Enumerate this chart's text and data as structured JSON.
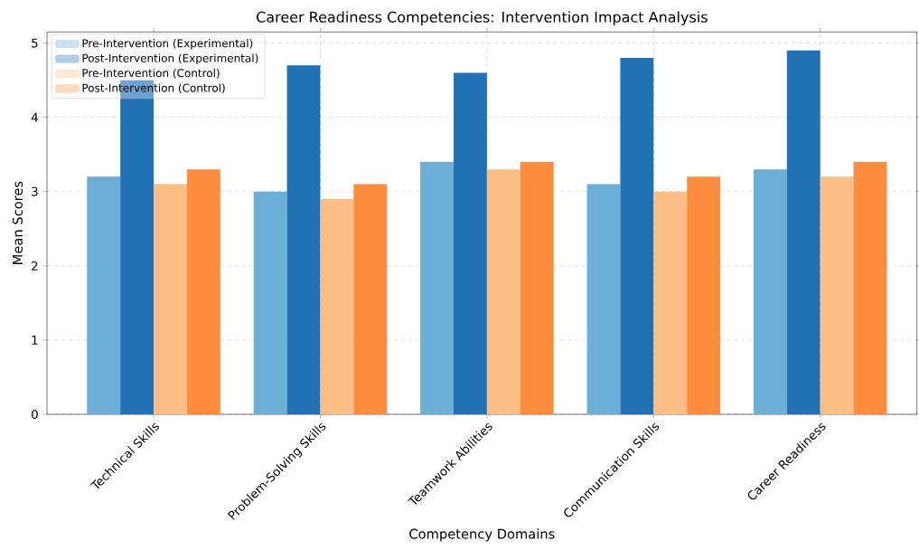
{
  "chart_data": {
    "type": "bar",
    "title": "Career Readiness Competencies: Intervention Impact Analysis",
    "xlabel": "Competency Domains",
    "ylabel": "Mean Scores",
    "categories": [
      "Technical Skills",
      "Problem-Solving Skills",
      "Teamwork Abilities",
      "Communication Skills",
      "Career Readiness"
    ],
    "series": [
      {
        "name": "Pre-Intervention (Experimental)",
        "color": "#6baed6",
        "values": [
          3.2,
          3.0,
          3.4,
          3.1,
          3.3
        ]
      },
      {
        "name": "Post-Intervention (Experimental)",
        "color": "#2171b5",
        "values": [
          4.5,
          4.7,
          4.6,
          4.8,
          4.9
        ]
      },
      {
        "name": "Pre-Intervention (Control)",
        "color": "#fdbe85",
        "values": [
          3.1,
          2.9,
          3.3,
          3.0,
          3.2
        ]
      },
      {
        "name": "Post-Intervention (Control)",
        "color": "#fd8d3c",
        "values": [
          3.3,
          3.1,
          3.4,
          3.2,
          3.4
        ]
      }
    ],
    "ylim": [
      0,
      5.15
    ],
    "yticks": [
      0,
      1,
      2,
      3,
      4,
      5
    ],
    "grid": true,
    "legend": "top left"
  }
}
